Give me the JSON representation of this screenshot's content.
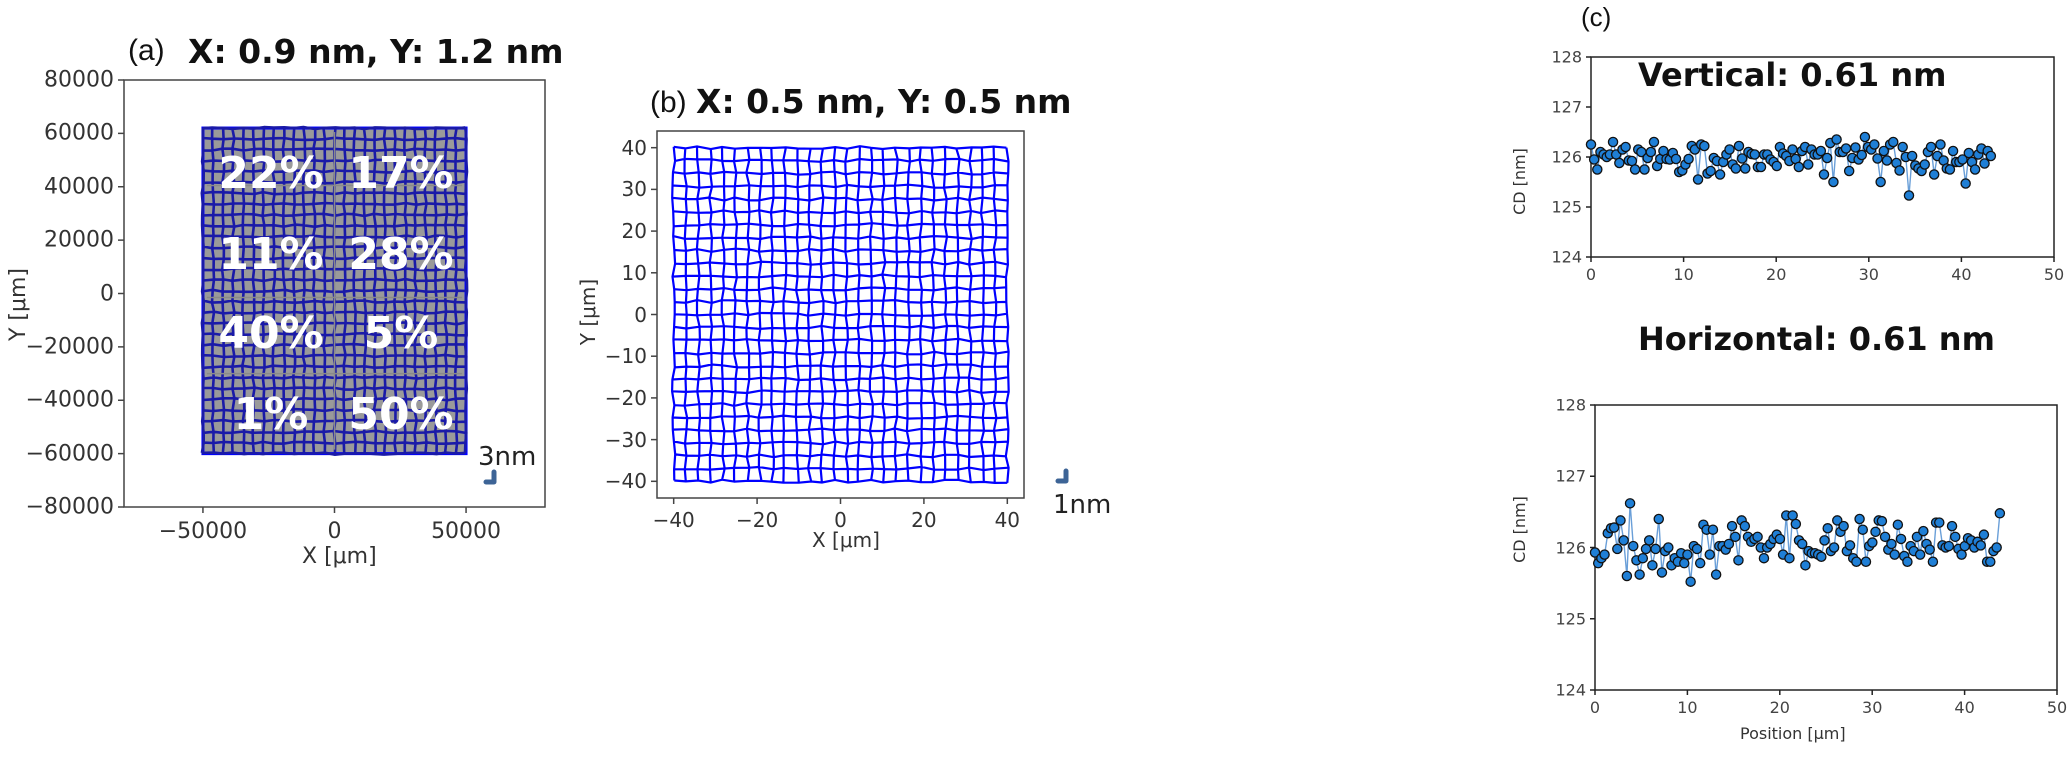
{
  "panels": {
    "a": {
      "label": "(a)",
      "title": "X: 0.9 nm, Y: 1.2 nm",
      "xlabel": "X [μm]",
      "ylabel": "Y [μm]",
      "xticks": [
        "−50000",
        "0",
        "50000"
      ],
      "yticks": [
        "80000",
        "60000",
        "40000",
        "20000",
        "0",
        "−20000",
        "−40000",
        "−60000",
        "−80000"
      ],
      "scale_label": "3nm",
      "regions": [
        "22%",
        "17%",
        "11%",
        "28%",
        "40%",
        "5%",
        "1%",
        "50%"
      ]
    },
    "b": {
      "label": "(b)",
      "title": "X: 0.5 nm, Y: 0.5 nm",
      "xlabel": "X [μm]",
      "ylabel": "Y [μm]",
      "xticks": [
        "−40",
        "−20",
        "0",
        "20",
        "40"
      ],
      "yticks": [
        "40",
        "30",
        "20",
        "10",
        "0",
        "−10",
        "−20",
        "−30",
        "−40"
      ],
      "scale_label": "1nm"
    },
    "c": {
      "label": "(c)",
      "top": {
        "annotation": "Vertical: 0.61 nm",
        "ylabel": "CD [nm]",
        "yticks": [
          "128",
          "127",
          "126",
          "125",
          "124"
        ],
        "xticks": [
          "0",
          "10",
          "20",
          "30",
          "40",
          "50"
        ]
      },
      "bottom": {
        "annotation": "Horizontal: 0.61 nm",
        "ylabel": "CD [nm]",
        "xlabel": "Position [μm]",
        "yticks": [
          "128",
          "127",
          "126",
          "125",
          "124"
        ],
        "xticks": [
          "0",
          "10",
          "20",
          "30",
          "40",
          "50"
        ]
      }
    }
  },
  "colors": {
    "grid_blue": "#0000ff",
    "grid_dark_blue": "#1a1aa8",
    "grid_fill_gray": "#9a9a9a",
    "marker_fill": "#1f7fd6",
    "marker_edge": "#111111",
    "line_blue": "#6a9fd8",
    "scale_marker": "#3d6496"
  },
  "chart_data": [
    {
      "type": "heatmap",
      "title": "(a) X: 0.9 nm, Y: 1.2 nm",
      "description": "Distortion grid map over wafer-scale field, split into 8 regions with percentage labels",
      "xlabel": "X [μm]",
      "ylabel": "Y [μm]",
      "xlim": [
        -80000,
        80000
      ],
      "ylim": [
        -80000,
        80000
      ],
      "xticks": [
        -50000,
        0,
        50000
      ],
      "yticks": [
        -80000,
        -60000,
        -40000,
        -20000,
        0,
        20000,
        40000,
        60000,
        80000
      ],
      "grid_extent": {
        "x": [
          -50000,
          50000
        ],
        "y": [
          -60000,
          62000
        ]
      },
      "grid_cells": {
        "cols": 26,
        "rows": 30
      },
      "regions": [
        {
          "row": 1,
          "col": 1,
          "label": "22%"
        },
        {
          "row": 1,
          "col": 2,
          "label": "17%"
        },
        {
          "row": 2,
          "col": 1,
          "label": "11%"
        },
        {
          "row": 2,
          "col": 2,
          "label": "28%"
        },
        {
          "row": 3,
          "col": 1,
          "label": "40%"
        },
        {
          "row": 3,
          "col": 2,
          "label": "5%"
        },
        {
          "row": 4,
          "col": 1,
          "label": "1%"
        },
        {
          "row": 4,
          "col": 2,
          "label": "50%"
        }
      ],
      "scale_bar": "3nm"
    },
    {
      "type": "heatmap",
      "title": "(b) X: 0.5 nm, Y: 0.5 nm",
      "description": "Distortion grid map over local field",
      "xlabel": "X [μm]",
      "ylabel": "Y [μm]",
      "xlim": [
        -44,
        44
      ],
      "ylim": [
        -44,
        44
      ],
      "xticks": [
        -40,
        -20,
        0,
        20,
        40
      ],
      "yticks": [
        -40,
        -30,
        -20,
        -10,
        0,
        10,
        20,
        30,
        40
      ],
      "grid_extent": {
        "x": [
          -40,
          40
        ],
        "y": [
          -40,
          40
        ]
      },
      "grid_cells": {
        "cols": 27,
        "rows": 26
      },
      "scale_bar": "1nm"
    },
    {
      "type": "line",
      "title": "Vertical: 0.61 nm",
      "xlabel": "",
      "ylabel": "CD [nm]",
      "xlim": [
        0,
        50
      ],
      "ylim": [
        124,
        128
      ],
      "xticks": [
        0,
        10,
        20,
        30,
        40,
        50
      ],
      "yticks": [
        124,
        125,
        126,
        127,
        128
      ],
      "series": [
        {
          "name": "Vertical",
          "x_start": 0,
          "x_step": 0.34,
          "values": [
            126.25,
            125.95,
            125.75,
            126.1,
            126.05,
            126.0,
            126.05,
            126.3,
            126.05,
            125.88,
            126.15,
            126.2,
            125.93,
            125.92,
            125.75,
            126.15,
            126.1,
            125.75,
            125.98,
            126.1,
            126.3,
            125.82,
            125.96,
            126.12,
            125.96,
            125.95,
            126.08,
            125.96,
            125.7,
            125.73,
            125.85,
            125.96,
            126.22,
            126.15,
            125.55,
            126.25,
            126.22,
            125.67,
            125.72,
            125.98,
            125.92,
            125.65,
            125.9,
            126.05,
            126.15,
            125.85,
            125.77,
            126.22,
            125.97,
            125.77,
            126.1,
            126.06,
            126.05,
            125.8,
            125.8,
            126.05,
            126.05,
            125.95,
            125.9,
            125.82,
            126.2,
            126.07,
            126.02,
            125.92,
            126.15,
            125.96,
            125.8,
            126.12,
            126.2,
            125.85,
            126.15,
            126.05,
            126.05,
            126.12,
            125.65,
            125.98,
            126.28,
            125.5,
            126.35,
            126.1,
            126.1,
            126.17,
            125.72,
            125.98,
            126.19,
            125.95,
            126.04,
            126.4,
            126.2,
            126.15,
            126.25,
            125.97,
            125.5,
            126.12,
            125.93,
            126.25,
            126.3,
            125.88,
            125.73,
            126.2,
            126.0,
            125.23,
            126.02,
            125.83,
            125.77,
            125.72,
            125.85,
            126.1,
            126.2,
            125.65,
            126.02,
            126.25,
            125.93,
            125.77,
            125.75,
            126.12,
            125.9,
            125.9,
            125.95,
            125.47,
            126.08,
            125.9,
            125.75,
            126.05,
            126.17,
            125.87,
            126.12,
            126.02
          ]
        }
      ]
    },
    {
      "type": "line",
      "title": "Horizontal: 0.61 nm",
      "xlabel": "Position [μm]",
      "ylabel": "CD [nm]",
      "xlim": [
        0,
        50
      ],
      "ylim": [
        124,
        128
      ],
      "xticks": [
        0,
        10,
        20,
        30,
        40,
        50
      ],
      "yticks": [
        124,
        125,
        126,
        127,
        128
      ],
      "series": [
        {
          "name": "Horizontal",
          "x_start": 0,
          "x_step": 0.345,
          "values": [
            125.93,
            125.78,
            125.85,
            125.9,
            126.2,
            126.27,
            126.28,
            125.98,
            126.38,
            126.1,
            125.6,
            126.62,
            126.02,
            125.82,
            125.62,
            125.85,
            125.98,
            126.1,
            125.75,
            125.98,
            126.4,
            125.65,
            125.95,
            126.0,
            125.75,
            125.85,
            125.8,
            125.92,
            125.78,
            125.9,
            125.52,
            126.02,
            125.98,
            125.78,
            126.32,
            126.25,
            125.9,
            126.25,
            125.62,
            126.02,
            126.02,
            125.97,
            126.05,
            126.3,
            126.15,
            125.82,
            126.38,
            126.3,
            126.15,
            126.08,
            126.12,
            126.15,
            126.0,
            125.85,
            126.0,
            126.05,
            126.12,
            126.18,
            126.12,
            125.9,
            126.45,
            125.85,
            126.45,
            126.33,
            126.1,
            126.05,
            125.75,
            125.95,
            125.92,
            125.92,
            125.9,
            125.87,
            126.1,
            126.27,
            125.95,
            126.0,
            126.38,
            126.22,
            126.3,
            125.95,
            126.03,
            125.85,
            125.8,
            126.4,
            126.25,
            125.8,
            126.02,
            126.07,
            126.22,
            126.38,
            126.37,
            126.15,
            125.97,
            126.05,
            125.9,
            126.32,
            126.12,
            125.88,
            125.8,
            126.02,
            125.95,
            126.15,
            125.9,
            126.23,
            126.05,
            125.97,
            125.8,
            126.35,
            126.35,
            126.03,
            126.0,
            126.02,
            126.3,
            126.15,
            125.98,
            125.9,
            126.02,
            126.13,
            126.1,
            126.0,
            126.08,
            126.03,
            126.18,
            125.8,
            125.8,
            125.95,
            126.0,
            126.48
          ]
        }
      ]
    }
  ]
}
